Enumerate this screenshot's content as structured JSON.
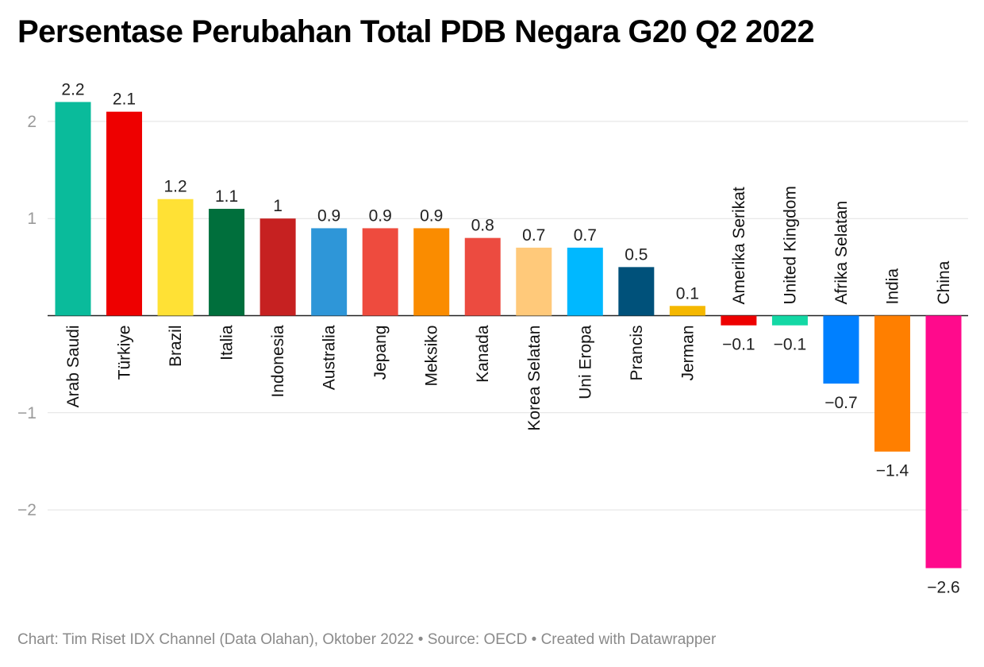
{
  "title": "Persentase Perubahan Total PDB Negara G20 Q2 2022",
  "footer": "Chart: Tim Riset IDX Channel (Data Olahan), Oktober 2022 • Source: OECD • Created with Datawrapper",
  "chart_data": {
    "type": "bar",
    "title": "Persentase Perubahan Total PDB Negara G20 Q2 2022",
    "xlabel": "",
    "ylabel": "",
    "ylim": [
      -2.7,
      2.3
    ],
    "yticks": [
      -2,
      -1,
      1,
      2
    ],
    "ytick_labels": [
      "−2",
      "−1",
      "1",
      "2"
    ],
    "grid": true,
    "categories": [
      "Arab Saudi",
      "Türkiye",
      "Brazil",
      "Italia",
      "Indonesia",
      "Australia",
      "Jepang",
      "Meksiko",
      "Kanada",
      "Korea Selatan",
      "Uni Eropa",
      "Prancis",
      "Jerman",
      "Amerika Serikat",
      "United Kingdom",
      "Afrika Selatan",
      "India",
      "China"
    ],
    "values": [
      2.2,
      2.1,
      1.2,
      1.1,
      1,
      0.9,
      0.9,
      0.9,
      0.8,
      0.7,
      0.7,
      0.5,
      0.1,
      -0.1,
      -0.1,
      -0.7,
      -1.4,
      -2.6
    ],
    "value_labels": [
      "2.2",
      "2.1",
      "1.2",
      "1.1",
      "1",
      "0.9",
      "0.9",
      "0.9",
      "0.8",
      "0.7",
      "0.7",
      "0.5",
      "0.1",
      "−0.1",
      "−0.1",
      "−0.7",
      "−1.4",
      "−2.6"
    ],
    "colors": [
      "#0ABB9B",
      "#EE0000",
      "#FFE135",
      "#006F3C",
      "#C62121",
      "#2E96D8",
      "#EE4B3E",
      "#FA8C00",
      "#EC4B40",
      "#FFC97A",
      "#00B8FF",
      "#00517A",
      "#F5B800",
      "#EE0000",
      "#14D8A5",
      "#0080FF",
      "#FF7F00",
      "#FF0A8C"
    ]
  }
}
